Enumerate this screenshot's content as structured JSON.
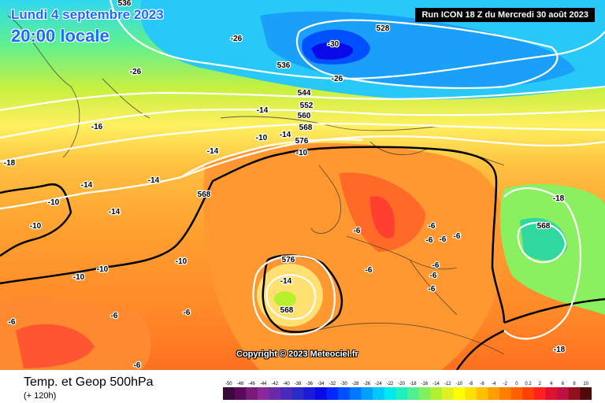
{
  "header": {
    "date_label": "Lundi 4 septembre 2023",
    "local_time_label": "20:00 locale",
    "run_label": "Run ICON 18 Z du Mercredi 30 août 2023"
  },
  "map": {
    "copyright": "Copyright © 2023 Meteociel.fr",
    "geopotential_labels": [
      "536",
      "528",
      "536",
      "544",
      "552",
      "560",
      "568",
      "576",
      "568",
      "576",
      "568",
      "568"
    ],
    "temperature_labels": [
      "-30",
      "-26",
      "-26",
      "-26",
      "-18",
      "-16",
      "-14",
      "-14",
      "-14",
      "-10",
      "-10",
      "-14",
      "-14",
      "-14",
      "-10",
      "-10",
      "-10",
      "-10",
      "-10",
      "-6",
      "-6",
      "-6",
      "-6",
      "-6",
      "-6",
      "-6",
      "-6",
      "-6",
      "-6",
      "-6",
      "-6",
      "-6",
      "-14",
      "-18",
      "-18"
    ]
  },
  "footer": {
    "product": "Temp. et Geop 500hPa",
    "lead_time": "(+ 120h)"
  },
  "legend": {
    "ticks": [
      "-50",
      "-48",
      "-46",
      "-44",
      "-42",
      "-40",
      "-38",
      "-36",
      "-34",
      "-32",
      "-30",
      "-28",
      "-26",
      "-24",
      "-22",
      "-20",
      "-18",
      "-16",
      "-14",
      "-12",
      "-10",
      "-8",
      "-6",
      "-4",
      "-2",
      "0",
      "0.2",
      "2",
      "4",
      "6",
      "8",
      "10"
    ],
    "colors": [
      "#3a0a3a",
      "#5a0a5a",
      "#7a1a7a",
      "#8a2a9a",
      "#6a2aa8",
      "#4a2ab8",
      "#2a2ac8",
      "#1a1ad8",
      "#0a0ae8",
      "#0028ff",
      "#0050ff",
      "#0078ff",
      "#00a0ff",
      "#00c8ff",
      "#00e8f0",
      "#20f0c0",
      "#50f090",
      "#80f060",
      "#b0f030",
      "#e0f020",
      "#ffff00",
      "#ffe000",
      "#ffc000",
      "#ffa000",
      "#ff8000",
      "#ff6000",
      "#ff4000",
      "#ff2020",
      "#e01030",
      "#c01040",
      "#901020",
      "#500808"
    ]
  }
}
